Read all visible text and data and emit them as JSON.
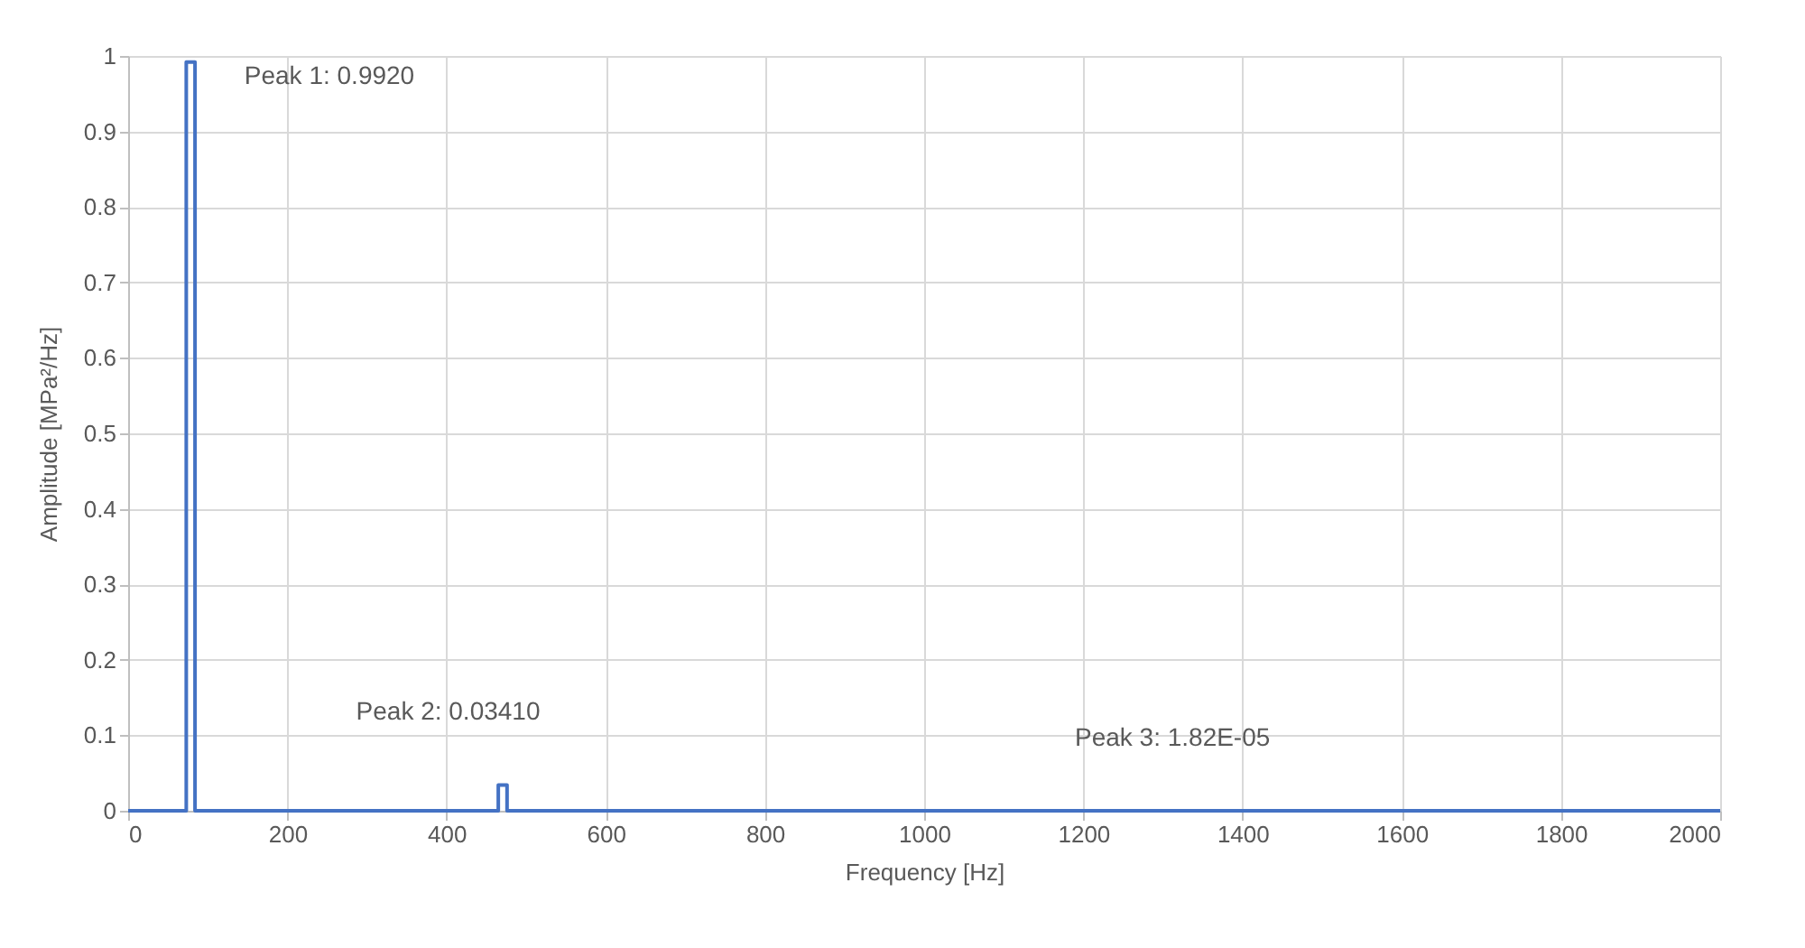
{
  "chart_data": {
    "type": "line",
    "xlabel": "Frequency [Hz]",
    "ylabel": "Amplitude [MPa²/Hz]",
    "series": [
      {
        "color": "#4472c4",
        "x": [
          0,
          73,
          73,
          84,
          84,
          465,
          465,
          476,
          476,
          1375,
          1375,
          1385,
          1385,
          2000
        ],
        "values": [
          0,
          0,
          0.992,
          0.992,
          0,
          0,
          0.0341,
          0.0341,
          0,
          0,
          1.82e-05,
          1.82e-05,
          0,
          0
        ]
      }
    ],
    "xlim": [
      0,
      2000
    ],
    "xticks": [
      0,
      200,
      400,
      600,
      800,
      1000,
      1200,
      1400,
      1600,
      1800,
      2000
    ],
    "ylim": [
      0,
      1
    ],
    "yticks": [
      0,
      0.1,
      0.2,
      0.3,
      0.4,
      0.5,
      0.6,
      0.7,
      0.8,
      0.9,
      1
    ],
    "grid": true,
    "marker": "none",
    "line_style": "solid",
    "annotations": [
      {
        "text": "Peak 1: 0.9920",
        "x": 78,
        "y": 0.992
      },
      {
        "text": "Peak 2: 0.03410",
        "x": 470,
        "y": 0.0341
      },
      {
        "text": "Peak 3: 1.82E-05",
        "x": 1380,
        "y": 1.82e-05
      }
    ]
  }
}
